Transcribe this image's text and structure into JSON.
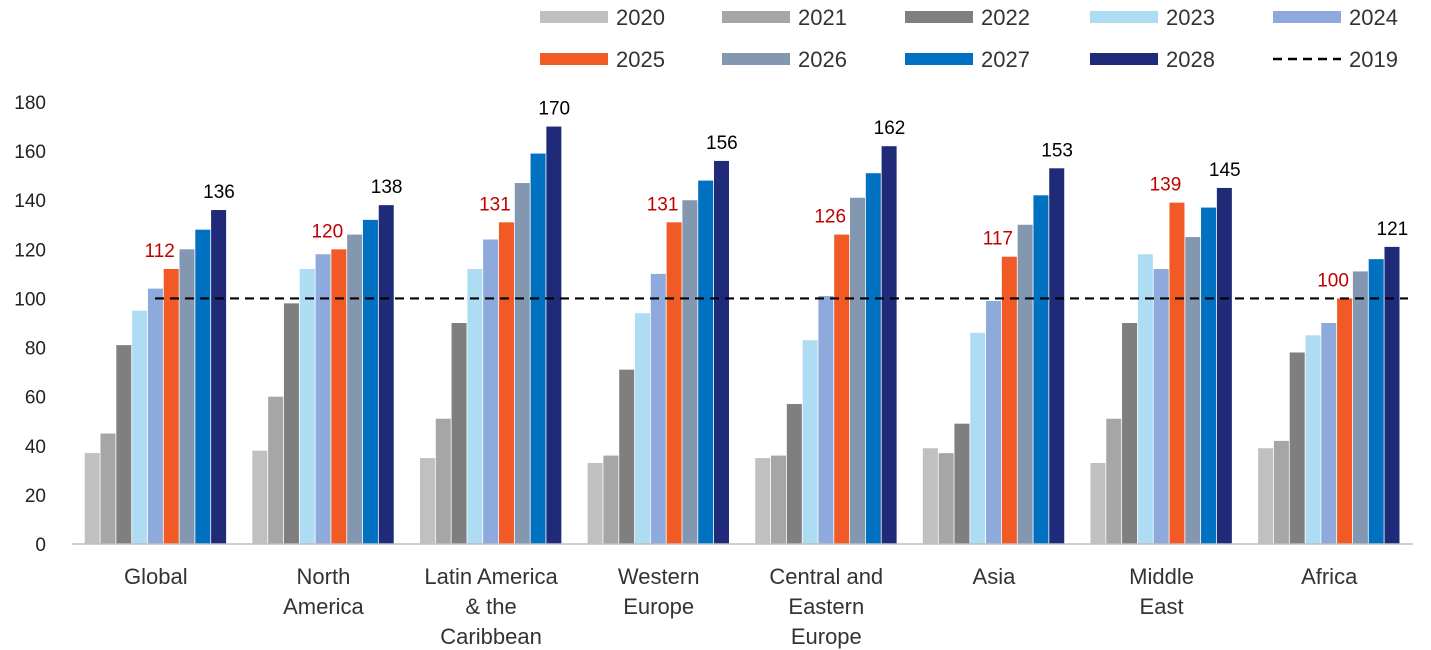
{
  "chart_data": {
    "type": "bar",
    "title": "",
    "xlabel": "",
    "ylabel": "",
    "ylim": [
      0,
      180
    ],
    "yticks": [
      0,
      20,
      40,
      60,
      80,
      100,
      120,
      140,
      160,
      180
    ],
    "grid": false,
    "legend_position": "top-right",
    "categories": [
      [
        "Global"
      ],
      [
        "North",
        "America"
      ],
      [
        "Latin America",
        "& the",
        "Caribbean"
      ],
      [
        "Western",
        "Europe"
      ],
      [
        "Central and",
        "Eastern",
        "Europe"
      ],
      [
        "Asia"
      ],
      [
        "Middle",
        "East"
      ],
      [
        "Africa"
      ]
    ],
    "series": [
      {
        "name": "2020",
        "color": "#c0c0c0",
        "values": [
          37,
          38,
          35,
          33,
          35,
          39,
          33,
          39
        ]
      },
      {
        "name": "2021",
        "color": "#a6a6a6",
        "values": [
          45,
          60,
          51,
          36,
          36,
          37,
          51,
          42
        ]
      },
      {
        "name": "2022",
        "color": "#7f7f7f",
        "values": [
          81,
          98,
          90,
          71,
          57,
          49,
          90,
          78
        ]
      },
      {
        "name": "2023",
        "color": "#aedcf2",
        "values": [
          95,
          112,
          112,
          94,
          83,
          86,
          118,
          85
        ]
      },
      {
        "name": "2024",
        "color": "#8ea9db",
        "values": [
          104,
          118,
          124,
          110,
          101,
          99,
          112,
          90
        ]
      },
      {
        "name": "2025",
        "color": "#f15a24",
        "values": [
          112,
          120,
          131,
          131,
          126,
          117,
          139,
          100
        ]
      },
      {
        "name": "2026",
        "color": "#8497b0",
        "values": [
          120,
          126,
          147,
          140,
          141,
          130,
          125,
          111
        ]
      },
      {
        "name": "2027",
        "color": "#0070c0",
        "values": [
          128,
          132,
          159,
          148,
          151,
          142,
          137,
          116
        ]
      },
      {
        "name": "2028",
        "color": "#1f2a78",
        "values": [
          136,
          138,
          170,
          156,
          162,
          153,
          145,
          121
        ]
      }
    ],
    "reference_line": {
      "name": "2019",
      "value": 100,
      "style": "dashed",
      "color": "#000000"
    },
    "data_labels": [
      {
        "series": "2025",
        "color": "#c00000",
        "values": [
          "112",
          "120",
          "131",
          "131",
          "126",
          "117",
          "139",
          "100"
        ]
      },
      {
        "series": "2028",
        "color": "#000000",
        "values": [
          "136",
          "138",
          "170",
          "156",
          "162",
          "153",
          "145",
          "121"
        ]
      }
    ]
  }
}
